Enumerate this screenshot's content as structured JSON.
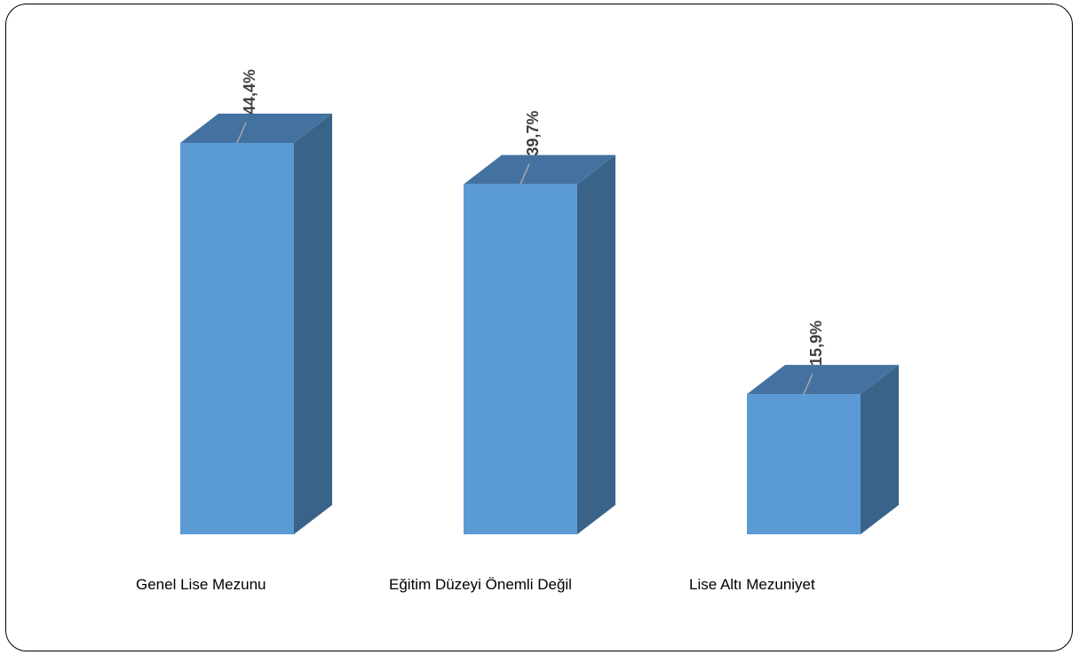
{
  "chart_data": {
    "type": "bar",
    "categories": [
      "Genel Lise Mezunu",
      "Eğitim Düzeyi Önemli Değil",
      "Lise Altı Mezuniyet"
    ],
    "values": [
      44.4,
      39.7,
      15.9
    ],
    "data_labels": [
      "44,4%",
      "39,7%",
      "15,9%"
    ],
    "title": "",
    "xlabel": "",
    "ylabel": "",
    "ylim": [
      0,
      44.4
    ],
    "grid": false,
    "legend": "none",
    "colors": {
      "front": "#5B9BD5",
      "top": "#4472A0",
      "side": "#3A6389",
      "leader": "#A6A6A6"
    }
  }
}
